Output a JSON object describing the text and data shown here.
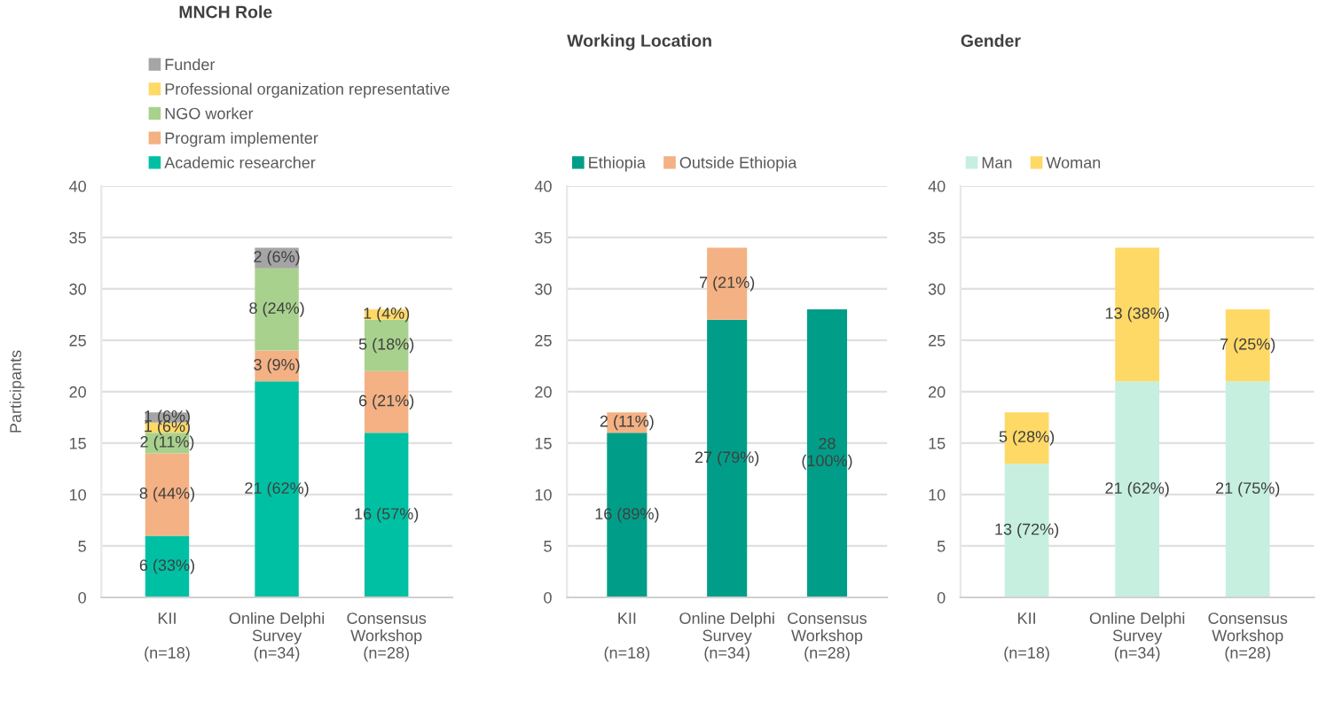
{
  "chart_data": [
    {
      "type": "bar",
      "title": "MNCH Role",
      "ylabel": "Participants",
      "stacked": true,
      "legend": "top",
      "grid": "y",
      "categories": [
        "KII\n\n(n=18)",
        "Online Delphi\nSurvey\n(n=34)",
        "Consensus\nWorkshop\n(n=28)"
      ],
      "ylim": [
        0,
        40
      ],
      "yticks": [
        0,
        5,
        10,
        15,
        20,
        25,
        30,
        35,
        40
      ],
      "series": [
        {
          "name": "Academic researcher",
          "color": "#00c0a3",
          "values": [
            6,
            21,
            16
          ],
          "value_labels": [
            "6 (33%)",
            "21 (62%)",
            "16 (57%)"
          ]
        },
        {
          "name": "Program implementer",
          "color": "#f4b183",
          "values": [
            8,
            3,
            6
          ],
          "value_labels": [
            "8 (44%)",
            "3 (9%)",
            "6 (21%)"
          ]
        },
        {
          "name": "NGO worker",
          "color": "#a9d18e",
          "values": [
            2,
            8,
            5
          ],
          "value_labels": [
            "2 (11%)",
            "8 (24%)",
            "5 (18%)"
          ]
        },
        {
          "name": "Professional organization representative",
          "color": "#ffd966",
          "values": [
            1,
            0,
            1
          ],
          "value_labels": [
            "1 (6%)",
            null,
            "1 (4%)"
          ]
        },
        {
          "name": "Funder",
          "color": "#a5a5a5",
          "values": [
            1,
            2,
            0
          ],
          "value_labels": [
            "1 (6%)",
            "2 (6%)",
            null
          ]
        }
      ]
    },
    {
      "type": "bar",
      "title": "Working Location",
      "stacked": true,
      "legend": "top",
      "grid": "y",
      "categories": [
        "KII\n\n(n=18)",
        "Online Delphi\nSurvey\n(n=34)",
        "Consensus\nWorkshop\n(n=28)"
      ],
      "ylim": [
        0,
        40
      ],
      "yticks": [
        0,
        5,
        10,
        15,
        20,
        25,
        30,
        35,
        40
      ],
      "series": [
        {
          "name": "Ethiopia",
          "color": "#009e88",
          "values": [
            16,
            27,
            28
          ],
          "value_labels": [
            "16 (89%)",
            "27 (79%)",
            "28\n(100%)"
          ]
        },
        {
          "name": "Outside Ethiopia",
          "color": "#f4b183",
          "values": [
            2,
            7,
            0
          ],
          "value_labels": [
            "2 (11%)",
            "7 (21%)",
            null
          ]
        }
      ]
    },
    {
      "type": "bar",
      "title": "Gender",
      "stacked": true,
      "legend": "top",
      "grid": "y",
      "categories": [
        "KII\n\n(n=18)",
        "Online Delphi\nSurvey\n(n=34)",
        "Consensus\nWorkshop\n(n=28)"
      ],
      "ylim": [
        0,
        40
      ],
      "yticks": [
        0,
        5,
        10,
        15,
        20,
        25,
        30,
        35,
        40
      ],
      "series": [
        {
          "name": "Man",
          "color": "#c6efdf",
          "values": [
            13,
            21,
            21
          ],
          "value_labels": [
            "13 (72%)",
            "21 (62%)",
            "21 (75%)"
          ]
        },
        {
          "name": "Woman",
          "color": "#ffd966",
          "values": [
            5,
            13,
            7
          ],
          "value_labels": [
            "5 (28%)",
            "13 (38%)",
            "7 (25%)"
          ]
        }
      ]
    }
  ]
}
